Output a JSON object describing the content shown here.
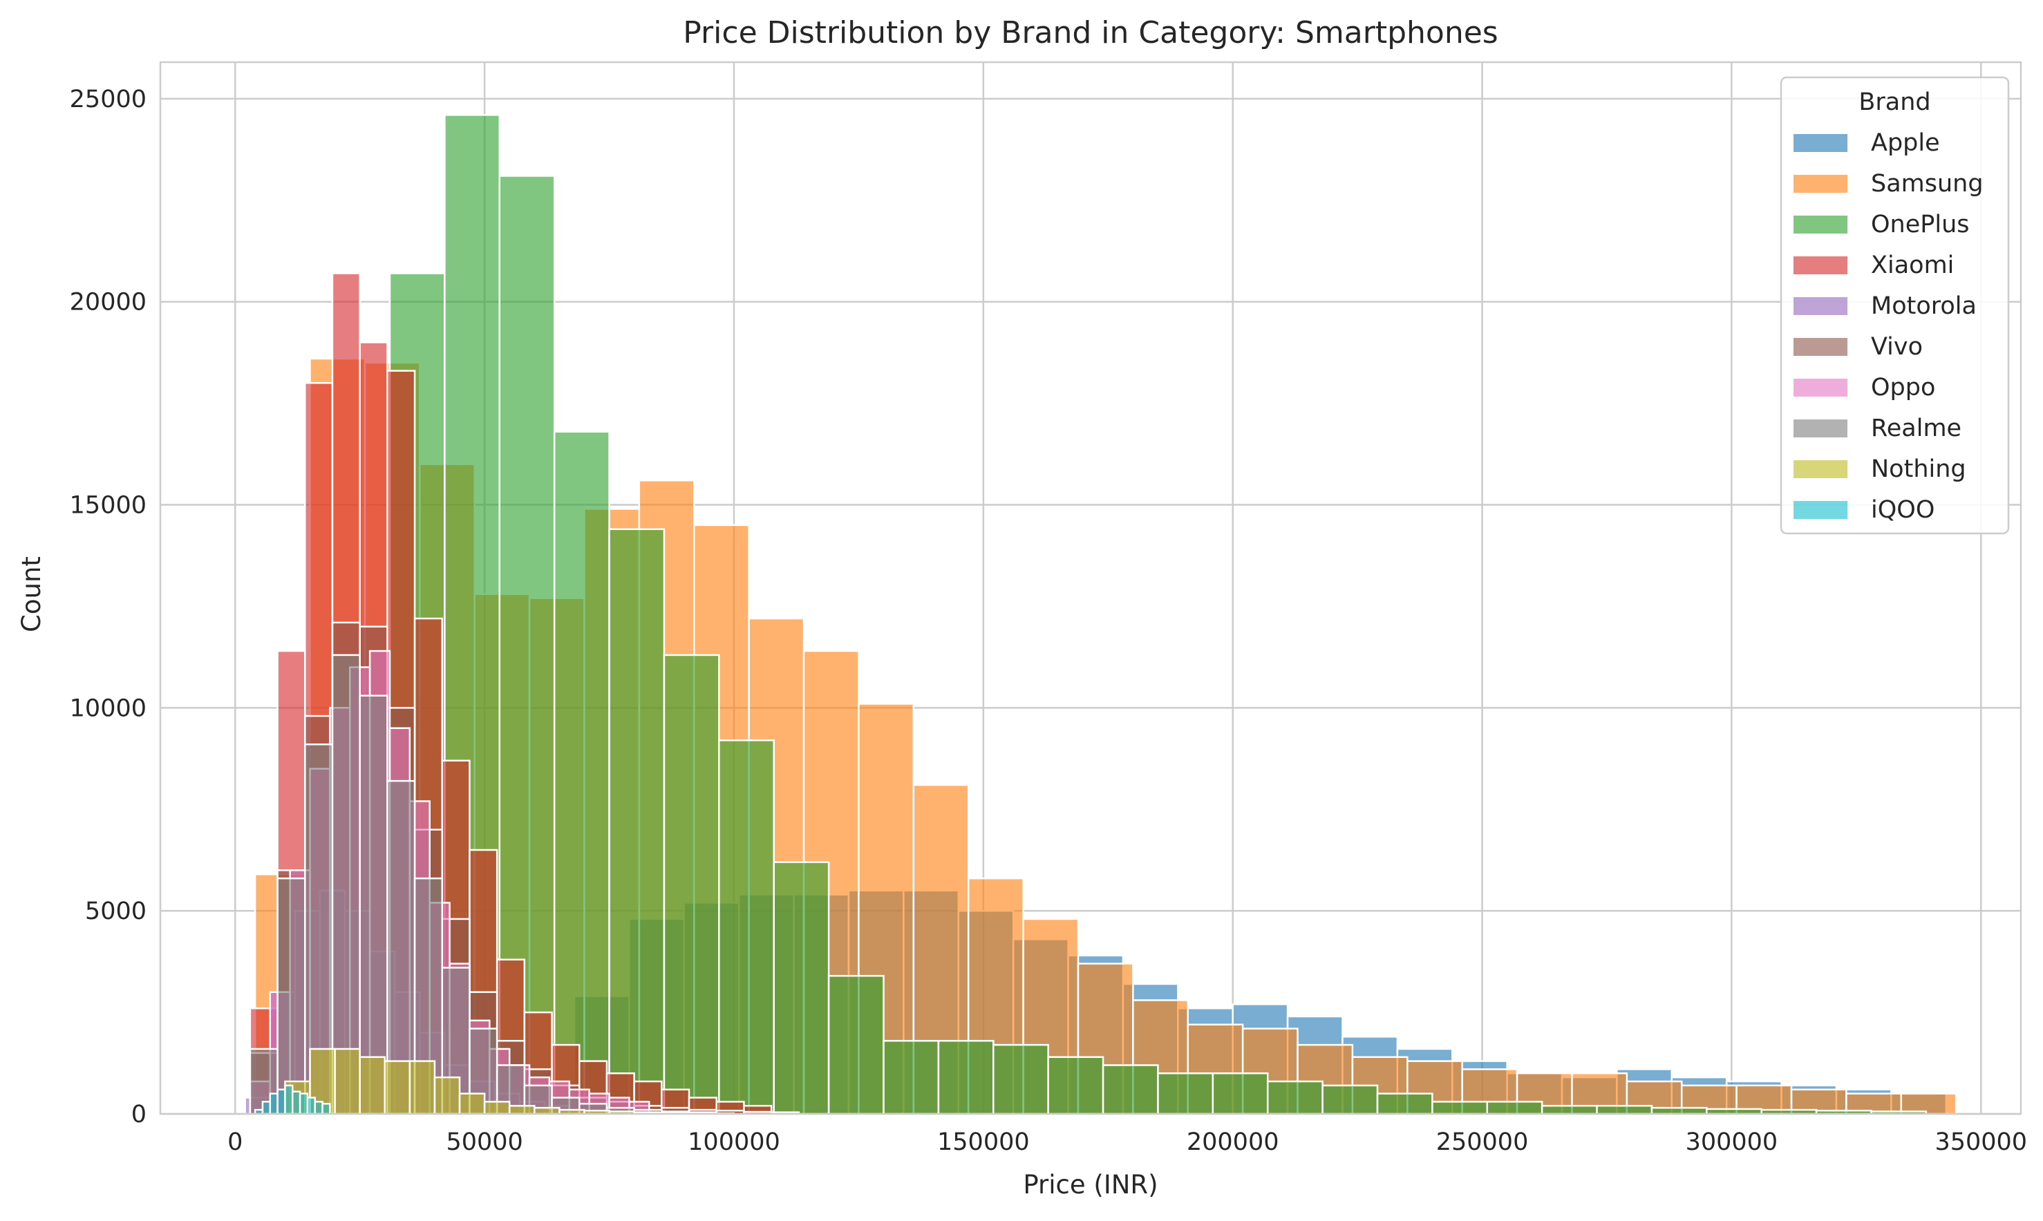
{
  "chart_data": {
    "type": "histogram",
    "title": "Price Distribution by Brand in Category: Smartphones",
    "xlabel": "Price (INR)",
    "ylabel": "Count",
    "xlim": [
      -15000,
      358000
    ],
    "ylim": [
      0,
      25900
    ],
    "x_ticks": [
      0,
      50000,
      100000,
      150000,
      200000,
      250000,
      300000,
      350000
    ],
    "y_ticks": [
      0,
      5000,
      10000,
      15000,
      20000,
      25000
    ],
    "grid": true,
    "legend_title": "Brand",
    "legend_position": "upper right",
    "series": [
      {
        "name": "Apple",
        "color": "#1f77b4",
        "bins": [
          [
            35000,
            46000,
            0
          ],
          [
            46000,
            57000,
            0
          ],
          [
            57000,
            68000,
            300
          ],
          [
            68000,
            79000,
            2900
          ],
          [
            79000,
            90000,
            4800
          ],
          [
            90000,
            101000,
            5200
          ],
          [
            101000,
            112000,
            5400
          ],
          [
            112000,
            123000,
            5400
          ],
          [
            123000,
            134000,
            5500
          ],
          [
            134000,
            145000,
            5500
          ],
          [
            145000,
            156000,
            5000
          ],
          [
            156000,
            167000,
            4300
          ],
          [
            167000,
            178000,
            3900
          ],
          [
            178000,
            189000,
            3200
          ],
          [
            189000,
            200000,
            2600
          ],
          [
            200000,
            211000,
            2700
          ],
          [
            211000,
            222000,
            2400
          ],
          [
            222000,
            233000,
            1900
          ],
          [
            233000,
            244000,
            1600
          ],
          [
            244000,
            255000,
            1300
          ],
          [
            255000,
            266000,
            1000
          ],
          [
            266000,
            277000,
            900
          ],
          [
            277000,
            288000,
            1100
          ],
          [
            288000,
            299000,
            900
          ],
          [
            299000,
            310000,
            800
          ],
          [
            310000,
            321000,
            700
          ],
          [
            321000,
            332000,
            600
          ],
          [
            332000,
            343000,
            500
          ]
        ]
      },
      {
        "name": "Samsung",
        "color": "#ff7f0e",
        "bins": [
          [
            4000,
            15000,
            5900
          ],
          [
            15000,
            26000,
            18600
          ],
          [
            26000,
            37000,
            18500
          ],
          [
            37000,
            48000,
            16000
          ],
          [
            48000,
            59000,
            12800
          ],
          [
            59000,
            70000,
            12700
          ],
          [
            70000,
            81000,
            14900
          ],
          [
            81000,
            92000,
            15600
          ],
          [
            92000,
            103000,
            14500
          ],
          [
            103000,
            114000,
            12200
          ],
          [
            114000,
            125000,
            11400
          ],
          [
            125000,
            136000,
            10100
          ],
          [
            136000,
            147000,
            8100
          ],
          [
            147000,
            158000,
            5800
          ],
          [
            158000,
            169000,
            4800
          ],
          [
            169000,
            180000,
            3700
          ],
          [
            180000,
            191000,
            2800
          ],
          [
            191000,
            202000,
            2200
          ],
          [
            202000,
            213000,
            2100
          ],
          [
            213000,
            224000,
            1700
          ],
          [
            224000,
            235000,
            1400
          ],
          [
            235000,
            246000,
            1300
          ],
          [
            246000,
            257000,
            1100
          ],
          [
            257000,
            268000,
            1000
          ],
          [
            268000,
            279000,
            1000
          ],
          [
            279000,
            290000,
            800
          ],
          [
            290000,
            301000,
            700
          ],
          [
            301000,
            312000,
            700
          ],
          [
            312000,
            323000,
            600
          ],
          [
            323000,
            334000,
            500
          ],
          [
            334000,
            345000,
            500
          ]
        ]
      },
      {
        "name": "OnePlus",
        "color": "#2ca02c",
        "bins": [
          [
            31000,
            42000,
            20700
          ],
          [
            42000,
            53000,
            24600
          ],
          [
            53000,
            64000,
            23100
          ],
          [
            64000,
            75000,
            16800
          ],
          [
            75000,
            86000,
            14400
          ],
          [
            86000,
            97000,
            11300
          ],
          [
            97000,
            108000,
            9200
          ],
          [
            108000,
            119000,
            6200
          ],
          [
            119000,
            130000,
            3400
          ],
          [
            130000,
            141000,
            1800
          ],
          [
            141000,
            152000,
            1800
          ],
          [
            152000,
            163000,
            1700
          ],
          [
            163000,
            174000,
            1400
          ],
          [
            174000,
            185000,
            1200
          ],
          [
            185000,
            196000,
            1000
          ],
          [
            196000,
            207000,
            1000
          ],
          [
            207000,
            218000,
            800
          ],
          [
            218000,
            229000,
            700
          ],
          [
            229000,
            240000,
            500
          ],
          [
            240000,
            251000,
            300
          ],
          [
            251000,
            262000,
            300
          ],
          [
            262000,
            273000,
            200
          ],
          [
            273000,
            284000,
            200
          ],
          [
            284000,
            295000,
            150
          ],
          [
            295000,
            306000,
            120
          ],
          [
            306000,
            317000,
            100
          ],
          [
            317000,
            328000,
            80
          ],
          [
            328000,
            339000,
            60
          ]
        ]
      },
      {
        "name": "Xiaomi",
        "color": "#d62728",
        "bins": [
          [
            3000,
            8500,
            2600
          ],
          [
            8500,
            14000,
            11400
          ],
          [
            14000,
            19500,
            18000
          ],
          [
            19500,
            25000,
            20700
          ],
          [
            25000,
            30500,
            19000
          ],
          [
            30500,
            36000,
            18300
          ],
          [
            36000,
            41500,
            12200
          ],
          [
            41500,
            47000,
            8700
          ],
          [
            47000,
            52500,
            6500
          ],
          [
            52500,
            58000,
            3800
          ],
          [
            58000,
            63500,
            2500
          ],
          [
            63500,
            69000,
            1700
          ],
          [
            69000,
            74500,
            1300
          ],
          [
            74500,
            80000,
            1000
          ],
          [
            80000,
            85500,
            800
          ],
          [
            85500,
            91000,
            600
          ],
          [
            91000,
            96500,
            400
          ],
          [
            96500,
            102000,
            300
          ],
          [
            102000,
            107500,
            200
          ]
        ]
      },
      {
        "name": "Motorola",
        "color": "#9467bd",
        "bins": [
          [
            2000,
            7000,
            400
          ],
          [
            7000,
            12000,
            3000
          ],
          [
            12000,
            17000,
            5000
          ],
          [
            17000,
            22000,
            5500
          ],
          [
            22000,
            27000,
            5000
          ],
          [
            27000,
            32000,
            4000
          ],
          [
            32000,
            37000,
            3000
          ],
          [
            37000,
            42000,
            2000
          ],
          [
            42000,
            47000,
            1200
          ],
          [
            47000,
            52000,
            800
          ],
          [
            52000,
            57000,
            500
          ],
          [
            57000,
            62000,
            300
          ],
          [
            62000,
            67000,
            200
          ]
        ]
      },
      {
        "name": "Vivo",
        "color": "#8c564b",
        "bins": [
          [
            3000,
            8500,
            1500
          ],
          [
            8500,
            14000,
            6000
          ],
          [
            14000,
            19500,
            9800
          ],
          [
            19500,
            25000,
            12100
          ],
          [
            25000,
            30500,
            12000
          ],
          [
            30500,
            36000,
            10000
          ],
          [
            36000,
            41500,
            7000
          ],
          [
            41500,
            47000,
            4800
          ],
          [
            47000,
            52500,
            3000
          ],
          [
            52500,
            58000,
            1800
          ],
          [
            58000,
            63500,
            1100
          ],
          [
            63500,
            69000,
            700
          ],
          [
            69000,
            74500,
            400
          ],
          [
            74500,
            80000,
            300
          ],
          [
            80000,
            85500,
            200
          ],
          [
            85500,
            91000,
            150
          ],
          [
            91000,
            96500,
            100
          ],
          [
            96500,
            102000,
            80
          ],
          [
            102000,
            107500,
            50
          ],
          [
            107500,
            113000,
            40
          ]
        ]
      },
      {
        "name": "Oppo",
        "color": "#e377c2",
        "bins": [
          [
            3000,
            7000,
            800
          ],
          [
            7000,
            11000,
            3000
          ],
          [
            11000,
            15000,
            6000
          ],
          [
            15000,
            19000,
            8500
          ],
          [
            19000,
            23000,
            10000
          ],
          [
            23000,
            27000,
            11000
          ],
          [
            27000,
            31000,
            11400
          ],
          [
            31000,
            35000,
            9500
          ],
          [
            35000,
            39000,
            7700
          ],
          [
            39000,
            43000,
            5200
          ],
          [
            43000,
            47000,
            3700
          ],
          [
            47000,
            51000,
            2300
          ],
          [
            51000,
            55000,
            1600
          ],
          [
            55000,
            59000,
            1200
          ],
          [
            59000,
            63000,
            900
          ],
          [
            63000,
            67000,
            800
          ],
          [
            67000,
            71000,
            600
          ],
          [
            71000,
            75000,
            500
          ],
          [
            75000,
            79000,
            400
          ],
          [
            79000,
            83000,
            300
          ]
        ]
      },
      {
        "name": "Realme",
        "color": "#7f7f7f",
        "bins": [
          [
            3000,
            8500,
            1600
          ],
          [
            8500,
            14000,
            5800
          ],
          [
            14000,
            19500,
            9100
          ],
          [
            19500,
            25000,
            11300
          ],
          [
            25000,
            30500,
            10300
          ],
          [
            30500,
            36000,
            8200
          ],
          [
            36000,
            41500,
            5800
          ],
          [
            41500,
            47000,
            3600
          ],
          [
            47000,
            52500,
            2100
          ],
          [
            52500,
            58000,
            1200
          ],
          [
            58000,
            63500,
            700
          ],
          [
            63500,
            69000,
            400
          ],
          [
            69000,
            74500,
            250
          ],
          [
            74500,
            80000,
            150
          ],
          [
            80000,
            85500,
            100
          ],
          [
            85500,
            91000,
            60
          ],
          [
            91000,
            96500,
            40
          ]
        ]
      },
      {
        "name": "Nothing",
        "color": "#bcbd22",
        "bins": [
          [
            10000,
            15000,
            800
          ],
          [
            15000,
            20000,
            1600
          ],
          [
            20000,
            25000,
            1600
          ],
          [
            25000,
            30000,
            1400
          ],
          [
            30000,
            35000,
            1300
          ],
          [
            35000,
            40000,
            1300
          ],
          [
            40000,
            45000,
            900
          ],
          [
            45000,
            50000,
            500
          ],
          [
            50000,
            55000,
            300
          ],
          [
            55000,
            60000,
            200
          ],
          [
            60000,
            65000,
            150
          ],
          [
            65000,
            70000,
            100
          ],
          [
            70000,
            75000,
            80
          ],
          [
            75000,
            80000,
            60
          ],
          [
            80000,
            85000,
            40
          ],
          [
            85000,
            90000,
            30
          ],
          [
            90000,
            95000,
            20
          ],
          [
            95000,
            100000,
            15
          ]
        ]
      },
      {
        "name": "iQOO",
        "color": "#17becf",
        "bins": [
          [
            4000,
            5500,
            100
          ],
          [
            5500,
            7000,
            300
          ],
          [
            7000,
            8500,
            500
          ],
          [
            8500,
            10000,
            600
          ],
          [
            10000,
            11500,
            700
          ],
          [
            11500,
            13000,
            550
          ],
          [
            13000,
            14500,
            500
          ],
          [
            14500,
            16000,
            400
          ],
          [
            16000,
            17500,
            300
          ],
          [
            17500,
            19000,
            250
          ]
        ]
      }
    ]
  }
}
